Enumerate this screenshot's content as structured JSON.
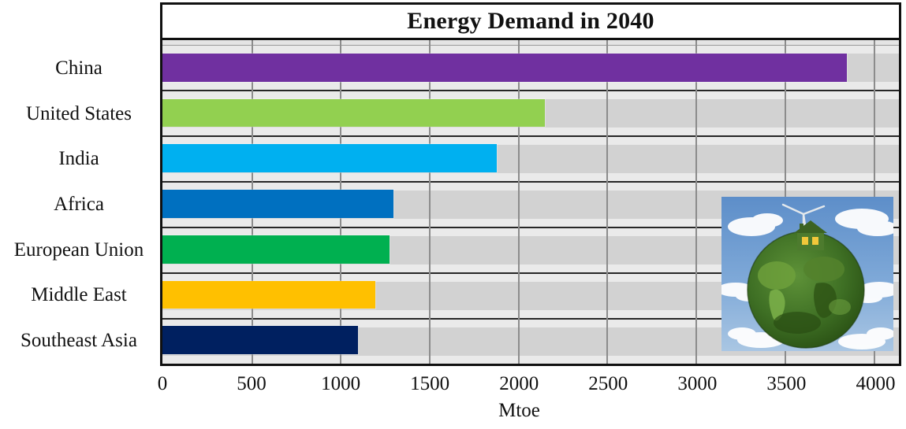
{
  "chart_data": {
    "type": "bar",
    "orientation": "horizontal",
    "title": "Energy Demand in 2040",
    "xlabel": "Mtoe",
    "categories": [
      "China",
      "United States",
      "India",
      "Africa",
      "European Union",
      "Middle East",
      "Southeast Asia"
    ],
    "values": [
      3850,
      2150,
      1880,
      1300,
      1280,
      1200,
      1100
    ],
    "bar_colors": [
      "#7030A0",
      "#92D050",
      "#00B0F0",
      "#0070C0",
      "#00B050",
      "#FFC000",
      "#002060"
    ],
    "x_ticks": [
      0,
      500,
      1000,
      1500,
      2000,
      2500,
      3000,
      3500,
      4000
    ],
    "xlim": [
      0,
      4144
    ],
    "grid": "vertical-major",
    "legend": "none",
    "colors": {
      "plot_background": "#DCDCDC",
      "row_gap": "#EAEAEA",
      "row_track": "#D2D2D2",
      "gridline": "#8C8C8C",
      "row_separator": "#262626",
      "frame_border": "#101010",
      "title_background": "#ffffff"
    }
  },
  "decoration": {
    "inset_image_alt": "green grass-covered earth globe with small green house, yellow windows and wind turbine against cloudy blue sky"
  }
}
